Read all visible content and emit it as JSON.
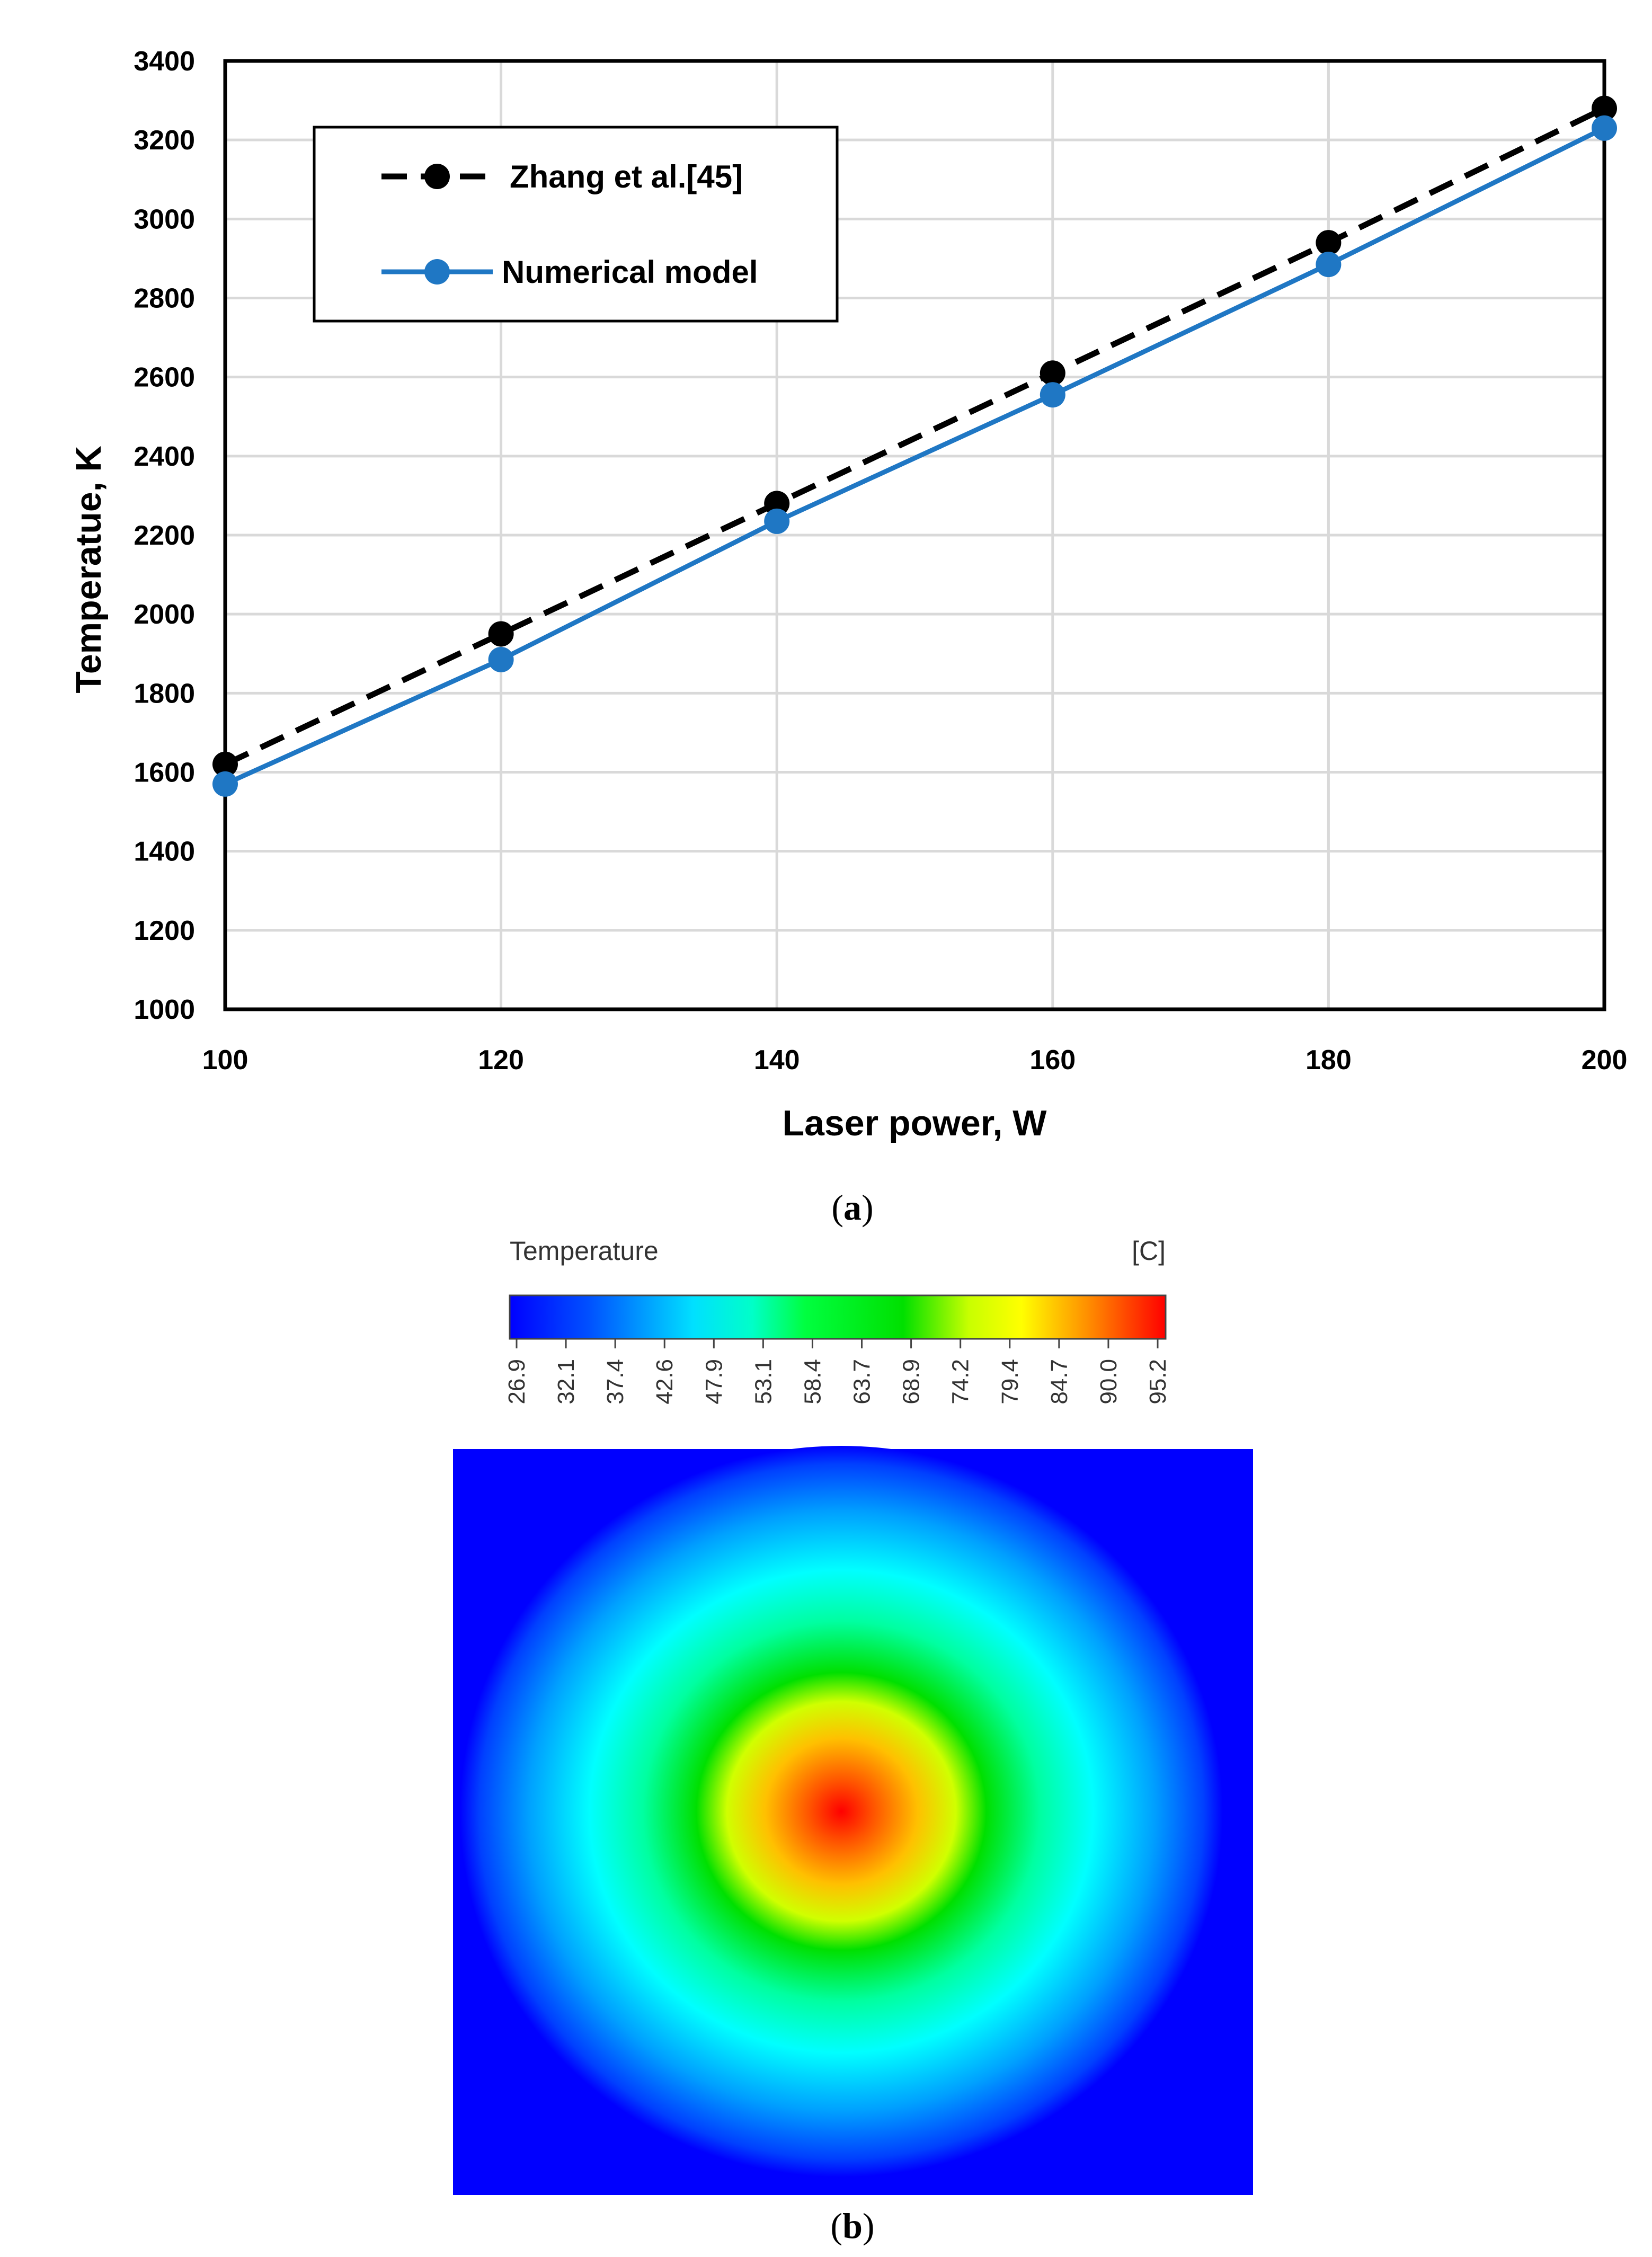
{
  "chart_data": [
    {
      "panel": "a",
      "type": "line",
      "xlabel": "Laser power, W",
      "ylabel": "Temperatue, K",
      "xlim": [
        100,
        200
      ],
      "ylim": [
        1000,
        3400
      ],
      "xticks": [
        100,
        120,
        140,
        160,
        180,
        200
      ],
      "yticks": [
        1000,
        1200,
        1400,
        1600,
        1800,
        2000,
        2200,
        2400,
        2600,
        2800,
        3000,
        3200,
        3400
      ],
      "grid": true,
      "legend_position": "top-left",
      "series": [
        {
          "name": "Zhang et al.[45]",
          "style": "dashed",
          "color": "#000000",
          "x": [
            100,
            120,
            140,
            160,
            180,
            200
          ],
          "values": [
            1620,
            1950,
            2280,
            2610,
            2940,
            3280
          ]
        },
        {
          "name": "Numerical model",
          "style": "solid",
          "color": "#1f77c4",
          "x": [
            100,
            120,
            140,
            160,
            180,
            200
          ],
          "values": [
            1570,
            1885,
            2235,
            2555,
            2885,
            3230
          ]
        }
      ],
      "caption": {
        "open": "(",
        "letter": "a",
        "close": ")"
      }
    },
    {
      "panel": "b",
      "type": "heatmap",
      "title": "Temperature",
      "unit": "[C]",
      "colorbar_ticks": [
        "26.9",
        "32.1",
        "37.4",
        "42.6",
        "47.9",
        "53.1",
        "58.4",
        "63.7",
        "68.9",
        "74.2",
        "79.4",
        "84.7",
        "90.0",
        "95.2"
      ],
      "min": 26.9,
      "max": 95.2,
      "peak_position": "center",
      "colormap": [
        "#0000ff",
        "#00b4ff",
        "#00ffff",
        "#00ff00",
        "#ffff00",
        "#ff8000",
        "#ff0000"
      ],
      "caption": {
        "open": "(",
        "letter": "b",
        "close": ")"
      }
    }
  ]
}
